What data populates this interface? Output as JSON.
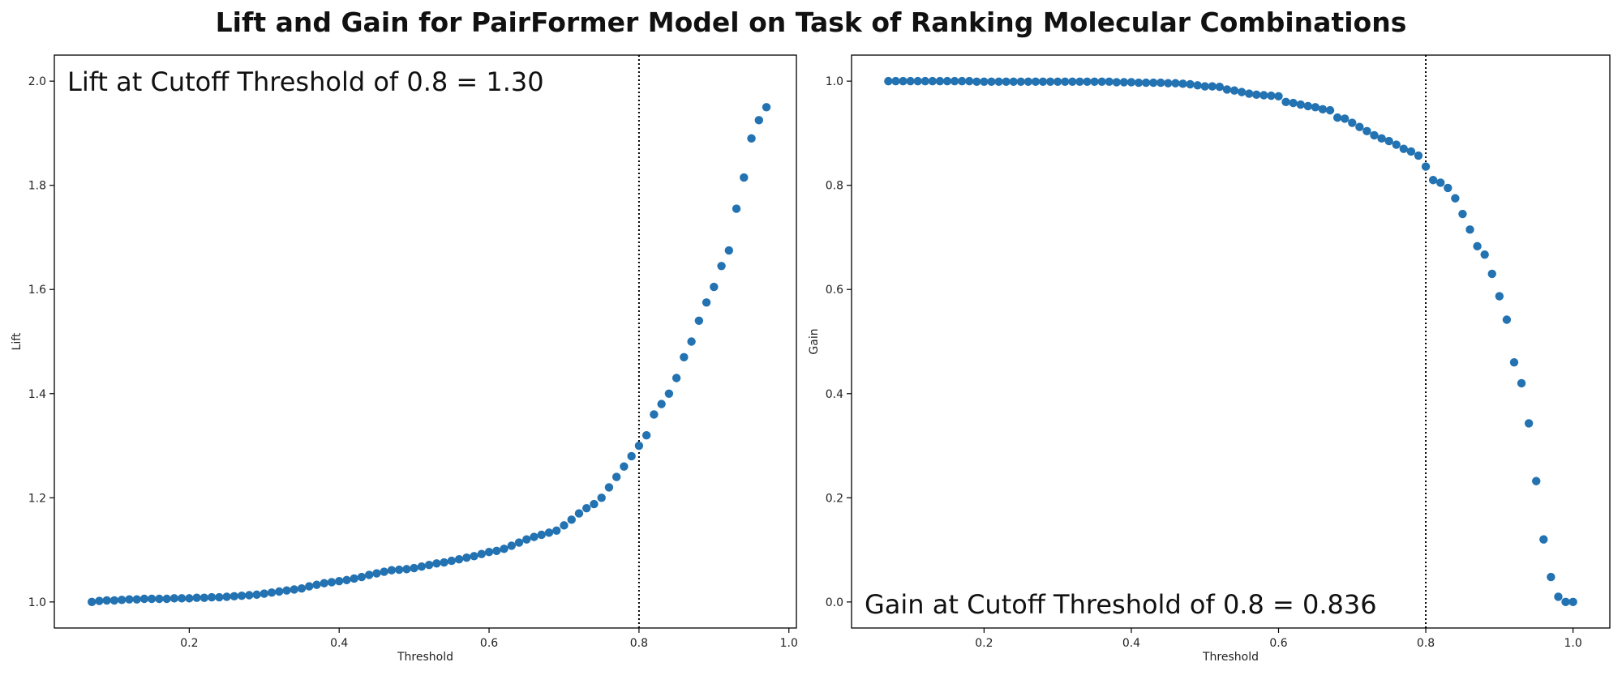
{
  "title": "Lift and Gain for PairFormer Model on Task of Ranking Molecular Combinations",
  "colors": {
    "points": "#2372b1",
    "axes": "#000000",
    "cutoff_line": "#000000"
  },
  "chart_data": [
    {
      "type": "scatter",
      "name": "lift",
      "xlabel": "Threshold",
      "ylabel": "Lift",
      "annotation": "Lift at Cutoff Threshold of 0.8 = 1.30",
      "annotation_position": "top-left",
      "xlim": [
        0.02,
        1.01
      ],
      "ylim": [
        0.95,
        2.05
      ],
      "xticks": [
        0.2,
        0.4,
        0.6,
        0.8,
        1.0
      ],
      "xtick_labels": [
        "0.2",
        "0.4",
        "0.6",
        "0.8",
        "1.0"
      ],
      "yticks": [
        1.0,
        1.2,
        1.4,
        1.6,
        1.8,
        2.0
      ],
      "ytick_labels": [
        "1.0",
        "1.2",
        "1.4",
        "1.6",
        "1.8",
        "2.0"
      ],
      "cutoff_x": 0.8,
      "grid": false,
      "x": [
        0.07,
        0.08,
        0.09,
        0.1,
        0.11,
        0.12,
        0.13,
        0.14,
        0.15,
        0.16,
        0.17,
        0.18,
        0.19,
        0.2,
        0.21,
        0.22,
        0.23,
        0.24,
        0.25,
        0.26,
        0.27,
        0.28,
        0.29,
        0.3,
        0.31,
        0.32,
        0.33,
        0.34,
        0.35,
        0.36,
        0.37,
        0.38,
        0.39,
        0.4,
        0.41,
        0.42,
        0.43,
        0.44,
        0.45,
        0.46,
        0.47,
        0.48,
        0.49,
        0.5,
        0.51,
        0.52,
        0.53,
        0.54,
        0.55,
        0.56,
        0.57,
        0.58,
        0.59,
        0.6,
        0.61,
        0.62,
        0.63,
        0.64,
        0.65,
        0.66,
        0.67,
        0.68,
        0.69,
        0.7,
        0.71,
        0.72,
        0.73,
        0.74,
        0.75,
        0.76,
        0.77,
        0.78,
        0.79,
        0.8,
        0.81,
        0.82,
        0.83,
        0.84,
        0.85,
        0.86,
        0.87,
        0.88,
        0.89,
        0.9,
        0.91,
        0.92,
        0.93,
        0.94,
        0.95,
        0.96,
        0.97
      ],
      "y": [
        1.0,
        1.002,
        1.003,
        1.003,
        1.004,
        1.005,
        1.005,
        1.006,
        1.006,
        1.006,
        1.006,
        1.007,
        1.007,
        1.007,
        1.008,
        1.008,
        1.009,
        1.009,
        1.01,
        1.011,
        1.012,
        1.013,
        1.014,
        1.016,
        1.018,
        1.02,
        1.022,
        1.024,
        1.026,
        1.03,
        1.033,
        1.036,
        1.038,
        1.04,
        1.042,
        1.045,
        1.048,
        1.052,
        1.055,
        1.058,
        1.061,
        1.062,
        1.063,
        1.065,
        1.068,
        1.071,
        1.074,
        1.076,
        1.079,
        1.082,
        1.085,
        1.088,
        1.092,
        1.096,
        1.098,
        1.102,
        1.108,
        1.114,
        1.12,
        1.125,
        1.129,
        1.133,
        1.137,
        1.147,
        1.158,
        1.17,
        1.18,
        1.188,
        1.2,
        1.22,
        1.24,
        1.26,
        1.28,
        1.3,
        1.32,
        1.36,
        1.38,
        1.4,
        1.43,
        1.47,
        1.5,
        1.54,
        1.575,
        1.605,
        1.645,
        1.675,
        1.755,
        1.815,
        1.89,
        1.925,
        1.95
      ]
    },
    {
      "type": "scatter",
      "name": "gain",
      "xlabel": "Threshold",
      "ylabel": "Gain",
      "annotation": "Gain at Cutoff Threshold of 0.8 = 0.836",
      "annotation_position": "bottom-left",
      "xlim": [
        0.02,
        1.05
      ],
      "ylim": [
        -0.05,
        1.05
      ],
      "xticks": [
        0.2,
        0.4,
        0.6,
        0.8,
        1.0
      ],
      "xtick_labels": [
        "0.2",
        "0.4",
        "0.6",
        "0.8",
        "1.0"
      ],
      "yticks": [
        0.0,
        0.2,
        0.4,
        0.6,
        0.8,
        1.0
      ],
      "ytick_labels": [
        "0.0",
        "0.2",
        "0.4",
        "0.6",
        "0.8",
        "1.0"
      ],
      "cutoff_x": 0.8,
      "grid": false,
      "x": [
        0.07,
        0.08,
        0.09,
        0.1,
        0.11,
        0.12,
        0.13,
        0.14,
        0.15,
        0.16,
        0.17,
        0.18,
        0.19,
        0.2,
        0.21,
        0.22,
        0.23,
        0.24,
        0.25,
        0.26,
        0.27,
        0.28,
        0.29,
        0.3,
        0.31,
        0.32,
        0.33,
        0.34,
        0.35,
        0.36,
        0.37,
        0.38,
        0.39,
        0.4,
        0.41,
        0.42,
        0.43,
        0.44,
        0.45,
        0.46,
        0.47,
        0.48,
        0.49,
        0.5,
        0.51,
        0.52,
        0.53,
        0.54,
        0.55,
        0.56,
        0.57,
        0.58,
        0.59,
        0.6,
        0.61,
        0.62,
        0.63,
        0.64,
        0.65,
        0.66,
        0.67,
        0.68,
        0.69,
        0.7,
        0.71,
        0.72,
        0.73,
        0.74,
        0.75,
        0.76,
        0.77,
        0.78,
        0.79,
        0.8,
        0.81,
        0.82,
        0.83,
        0.84,
        0.85,
        0.86,
        0.87,
        0.88,
        0.89,
        0.9,
        0.91,
        0.92,
        0.93,
        0.94,
        0.95,
        0.96,
        0.97,
        0.98,
        0.99,
        1.0
      ],
      "y": [
        1.0,
        1.0,
        1.0,
        1.0,
        1.0,
        1.0,
        1.0,
        1.0,
        1.0,
        1.0,
        1.0,
        1.0,
        0.999,
        0.999,
        0.999,
        0.999,
        0.999,
        0.999,
        0.999,
        0.999,
        0.999,
        0.999,
        0.999,
        0.999,
        0.999,
        0.999,
        0.999,
        0.999,
        0.999,
        0.999,
        0.999,
        0.998,
        0.998,
        0.998,
        0.997,
        0.997,
        0.997,
        0.997,
        0.996,
        0.996,
        0.995,
        0.994,
        0.992,
        0.99,
        0.99,
        0.989,
        0.984,
        0.982,
        0.979,
        0.976,
        0.974,
        0.973,
        0.972,
        0.971,
        0.96,
        0.958,
        0.955,
        0.952,
        0.95,
        0.946,
        0.944,
        0.93,
        0.928,
        0.92,
        0.912,
        0.904,
        0.896,
        0.89,
        0.885,
        0.878,
        0.87,
        0.865,
        0.857,
        0.836,
        0.81,
        0.805,
        0.795,
        0.775,
        0.745,
        0.715,
        0.683,
        0.667,
        0.63,
        0.587,
        0.542,
        0.46,
        0.42,
        0.343,
        0.232,
        0.12,
        0.048,
        0.01,
        0.0,
        0.0
      ]
    }
  ]
}
